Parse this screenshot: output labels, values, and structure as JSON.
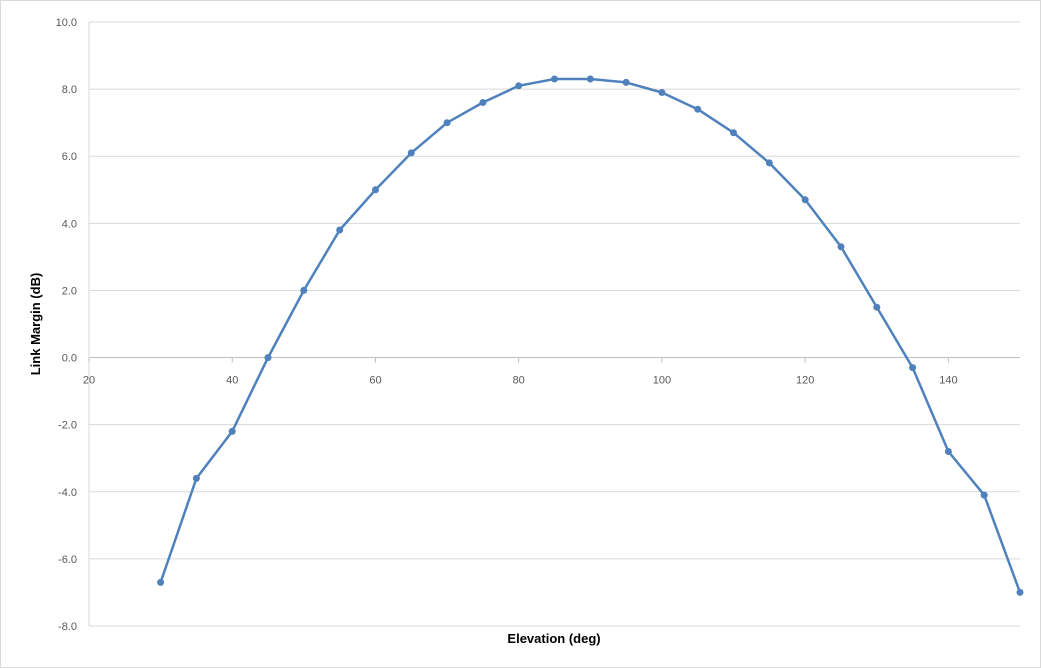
{
  "chart_data": {
    "type": "line",
    "title": "",
    "xlabel": "Elevation (deg)",
    "ylabel": "Link Margin (dB)",
    "xlim": [
      20,
      150
    ],
    "ylim": [
      -8.0,
      10.0
    ],
    "x_ticks": [
      20,
      40,
      60,
      80,
      100,
      120,
      140
    ],
    "x_tick_labels": [
      "20",
      "40",
      "60",
      "80",
      "100",
      "120",
      "140"
    ],
    "y_ticks": [
      10.0,
      8.0,
      6.0,
      4.0,
      2.0,
      0.0,
      -2.0,
      -4.0,
      -6.0,
      -8.0
    ],
    "y_tick_labels": [
      "10.0",
      "8.0",
      "6.0",
      "4.0",
      "2.0",
      "0.0",
      "-2.0",
      "-4.0",
      "-6.0",
      "-8.0"
    ],
    "grid": true,
    "legend": "none",
    "series": [
      {
        "x": [
          30,
          35,
          40,
          45,
          50,
          55,
          60,
          65,
          70,
          75,
          80,
          85,
          90,
          95,
          100,
          105,
          110,
          115,
          120,
          125,
          130,
          135,
          140,
          145,
          150
        ],
        "y": [
          -6.7,
          -3.6,
          -2.2,
          0.0,
          2.0,
          3.8,
          5.0,
          6.1,
          7.0,
          7.6,
          8.1,
          8.3,
          8.3,
          8.2,
          7.9,
          7.4,
          6.7,
          5.8,
          4.7,
          3.3,
          1.5,
          -0.3,
          -2.8,
          -4.1,
          -7.0
        ],
        "color": "#4f81bd"
      }
    ]
  }
}
